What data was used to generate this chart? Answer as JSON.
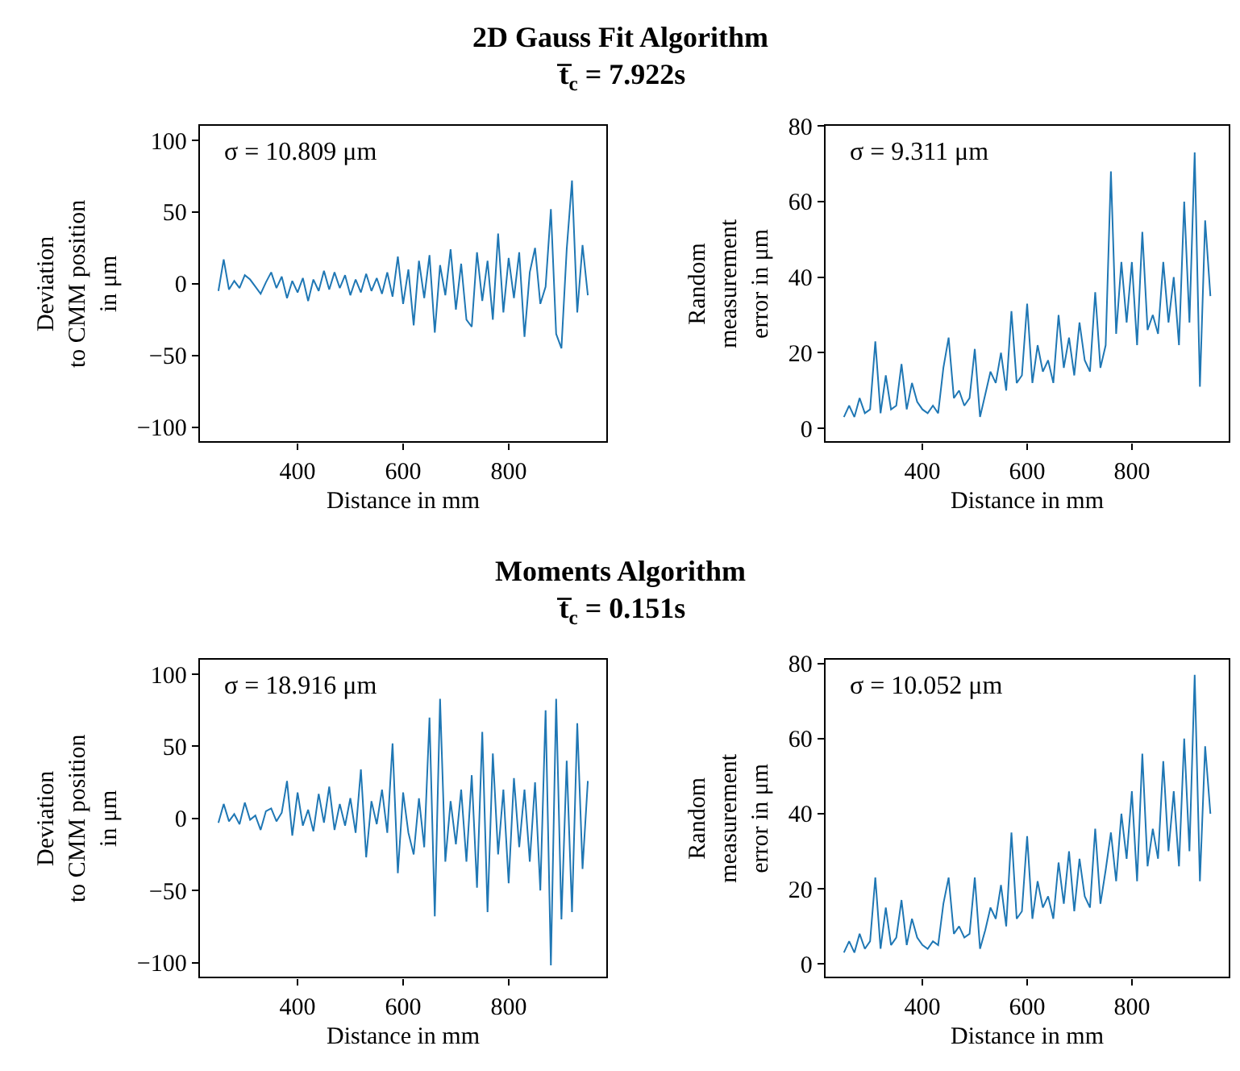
{
  "chart_data": [
    {
      "type": "line",
      "title": "2D Gauss Fit Algorithm",
      "subtitle": "t̅$_{c}$ = 7.922s",
      "xlabel": "Distance in mm",
      "ylabel": "Deviation\nto CMM position\nin μm",
      "annotations": [
        "σ = 10.809 μm"
      ],
      "color": "#1f77b4",
      "xlim": [
        215,
        985
      ],
      "ylim": [
        -110,
        110
      ],
      "xticks": [
        400,
        600,
        800
      ],
      "yticks": [
        -100,
        -50,
        0,
        50,
        100
      ],
      "x": [
        250,
        260,
        270,
        280,
        290,
        300,
        310,
        320,
        330,
        340,
        350,
        360,
        370,
        380,
        390,
        400,
        410,
        420,
        430,
        440,
        450,
        460,
        470,
        480,
        490,
        500,
        510,
        520,
        530,
        540,
        550,
        560,
        570,
        580,
        590,
        600,
        610,
        620,
        630,
        640,
        650,
        660,
        670,
        680,
        690,
        700,
        710,
        720,
        730,
        740,
        750,
        760,
        770,
        780,
        790,
        800,
        810,
        820,
        830,
        840,
        850,
        860,
        870,
        880,
        890,
        900,
        910,
        920,
        930,
        940,
        950
      ],
      "values": [
        -5,
        17,
        -4,
        2,
        -3,
        6,
        3,
        -2,
        -7,
        1,
        8,
        -3,
        5,
        -10,
        2,
        -6,
        4,
        -12,
        3,
        -5,
        9,
        -4,
        8,
        -3,
        6,
        -8,
        3,
        -6,
        7,
        -5,
        4,
        -7,
        8,
        -9,
        19,
        -14,
        10,
        -29,
        16,
        -10,
        20,
        -34,
        13,
        -8,
        24,
        -18,
        14,
        -25,
        -30,
        22,
        -12,
        16,
        -25,
        35,
        -20,
        18,
        -10,
        22,
        -37,
        8,
        25,
        -14,
        -2,
        52,
        -35,
        -45,
        24,
        72,
        -20,
        27,
        -8
      ]
    },
    {
      "type": "line",
      "xlabel": "Distance in mm",
      "ylabel": "Random\nmeasurement\nerror in μm",
      "annotations": [
        "σ = 9.311 μm"
      ],
      "color": "#1f77b4",
      "xlim": [
        215,
        985
      ],
      "ylim": [
        -3.5,
        80
      ],
      "xticks": [
        400,
        600,
        800
      ],
      "yticks": [
        0,
        20,
        40,
        60,
        80
      ],
      "x": [
        250,
        260,
        270,
        280,
        290,
        300,
        310,
        320,
        330,
        340,
        350,
        360,
        370,
        380,
        390,
        400,
        410,
        420,
        430,
        440,
        450,
        460,
        470,
        480,
        490,
        500,
        510,
        520,
        530,
        540,
        550,
        560,
        570,
        580,
        590,
        600,
        610,
        620,
        630,
        640,
        650,
        660,
        670,
        680,
        690,
        700,
        710,
        720,
        730,
        740,
        750,
        760,
        770,
        780,
        790,
        800,
        810,
        820,
        830,
        840,
        850,
        860,
        870,
        880,
        890,
        900,
        910,
        920,
        930,
        940,
        950
      ],
      "values": [
        3,
        6,
        3,
        8,
        4,
        5,
        23,
        4,
        14,
        5,
        6,
        17,
        5,
        12,
        7,
        5,
        4,
        6,
        4,
        16,
        24,
        8,
        10,
        6,
        8,
        21,
        3,
        9,
        15,
        12,
        20,
        10,
        31,
        12,
        14,
        33,
        12,
        22,
        15,
        18,
        12,
        30,
        16,
        24,
        14,
        28,
        18,
        15,
        36,
        16,
        22,
        68,
        25,
        44,
        28,
        44,
        22,
        52,
        26,
        30,
        25,
        44,
        28,
        40,
        22,
        60,
        28,
        73,
        11,
        55,
        35
      ]
    },
    {
      "type": "line",
      "title": "Moments Algorithm",
      "subtitle": "t̅$_{c}$ = 0.151s",
      "xlabel": "Distance in mm",
      "ylabel": "Deviation\nto CMM position\nin μm",
      "annotations": [
        "σ = 18.916 μm"
      ],
      "color": "#1f77b4",
      "xlim": [
        215,
        985
      ],
      "ylim": [
        -110,
        110
      ],
      "xticks": [
        400,
        600,
        800
      ],
      "yticks": [
        -100,
        -50,
        0,
        50,
        100
      ],
      "x": [
        250,
        260,
        270,
        280,
        290,
        300,
        310,
        320,
        330,
        340,
        350,
        360,
        370,
        380,
        390,
        400,
        410,
        420,
        430,
        440,
        450,
        460,
        470,
        480,
        490,
        500,
        510,
        520,
        530,
        540,
        550,
        560,
        570,
        580,
        590,
        600,
        610,
        620,
        630,
        640,
        650,
        660,
        670,
        680,
        690,
        700,
        710,
        720,
        730,
        740,
        750,
        760,
        770,
        780,
        790,
        800,
        810,
        820,
        830,
        840,
        850,
        860,
        870,
        880,
        890,
        900,
        910,
        920,
        930,
        940,
        950
      ],
      "values": [
        -3,
        10,
        -2,
        3,
        -4,
        11,
        -1,
        2,
        -8,
        5,
        7,
        -2,
        4,
        26,
        -12,
        18,
        -5,
        6,
        -9,
        17,
        -3,
        22,
        -8,
        10,
        -5,
        14,
        -10,
        34,
        -27,
        12,
        -4,
        20,
        -10,
        52,
        -38,
        18,
        -10,
        -25,
        14,
        -20,
        70,
        -68,
        83,
        -30,
        12,
        -18,
        20,
        -30,
        30,
        -48,
        60,
        -65,
        45,
        -25,
        20,
        -45,
        28,
        -20,
        20,
        -30,
        25,
        -50,
        75,
        -102,
        83,
        -70,
        40,
        -65,
        66,
        -35,
        26
      ]
    },
    {
      "type": "line",
      "xlabel": "Distance in mm",
      "ylabel": "Random\nmeasurement\nerror in μm",
      "annotations": [
        "σ = 10.052 μm"
      ],
      "color": "#1f77b4",
      "xlim": [
        215,
        985
      ],
      "ylim": [
        -3.5,
        81
      ],
      "xticks": [
        400,
        600,
        800
      ],
      "yticks": [
        0,
        20,
        40,
        60,
        80
      ],
      "x": [
        250,
        260,
        270,
        280,
        290,
        300,
        310,
        320,
        330,
        340,
        350,
        360,
        370,
        380,
        390,
        400,
        410,
        420,
        430,
        440,
        450,
        460,
        470,
        480,
        490,
        500,
        510,
        520,
        530,
        540,
        550,
        560,
        570,
        580,
        590,
        600,
        610,
        620,
        630,
        640,
        650,
        660,
        670,
        680,
        690,
        700,
        710,
        720,
        730,
        740,
        750,
        760,
        770,
        780,
        790,
        800,
        810,
        820,
        830,
        840,
        850,
        860,
        870,
        880,
        890,
        900,
        910,
        920,
        930,
        940,
        950
      ],
      "values": [
        3,
        6,
        3,
        8,
        4,
        6,
        23,
        4,
        15,
        5,
        7,
        17,
        5,
        12,
        7,
        5,
        4,
        6,
        5,
        16,
        23,
        8,
        10,
        7,
        8,
        23,
        4,
        9,
        15,
        12,
        21,
        10,
        35,
        12,
        14,
        34,
        12,
        22,
        15,
        18,
        12,
        27,
        16,
        30,
        14,
        28,
        18,
        15,
        36,
        16,
        25,
        35,
        22,
        40,
        28,
        46,
        22,
        56,
        26,
        36,
        28,
        54,
        30,
        46,
        26,
        60,
        30,
        77,
        22,
        58,
        40
      ]
    }
  ]
}
